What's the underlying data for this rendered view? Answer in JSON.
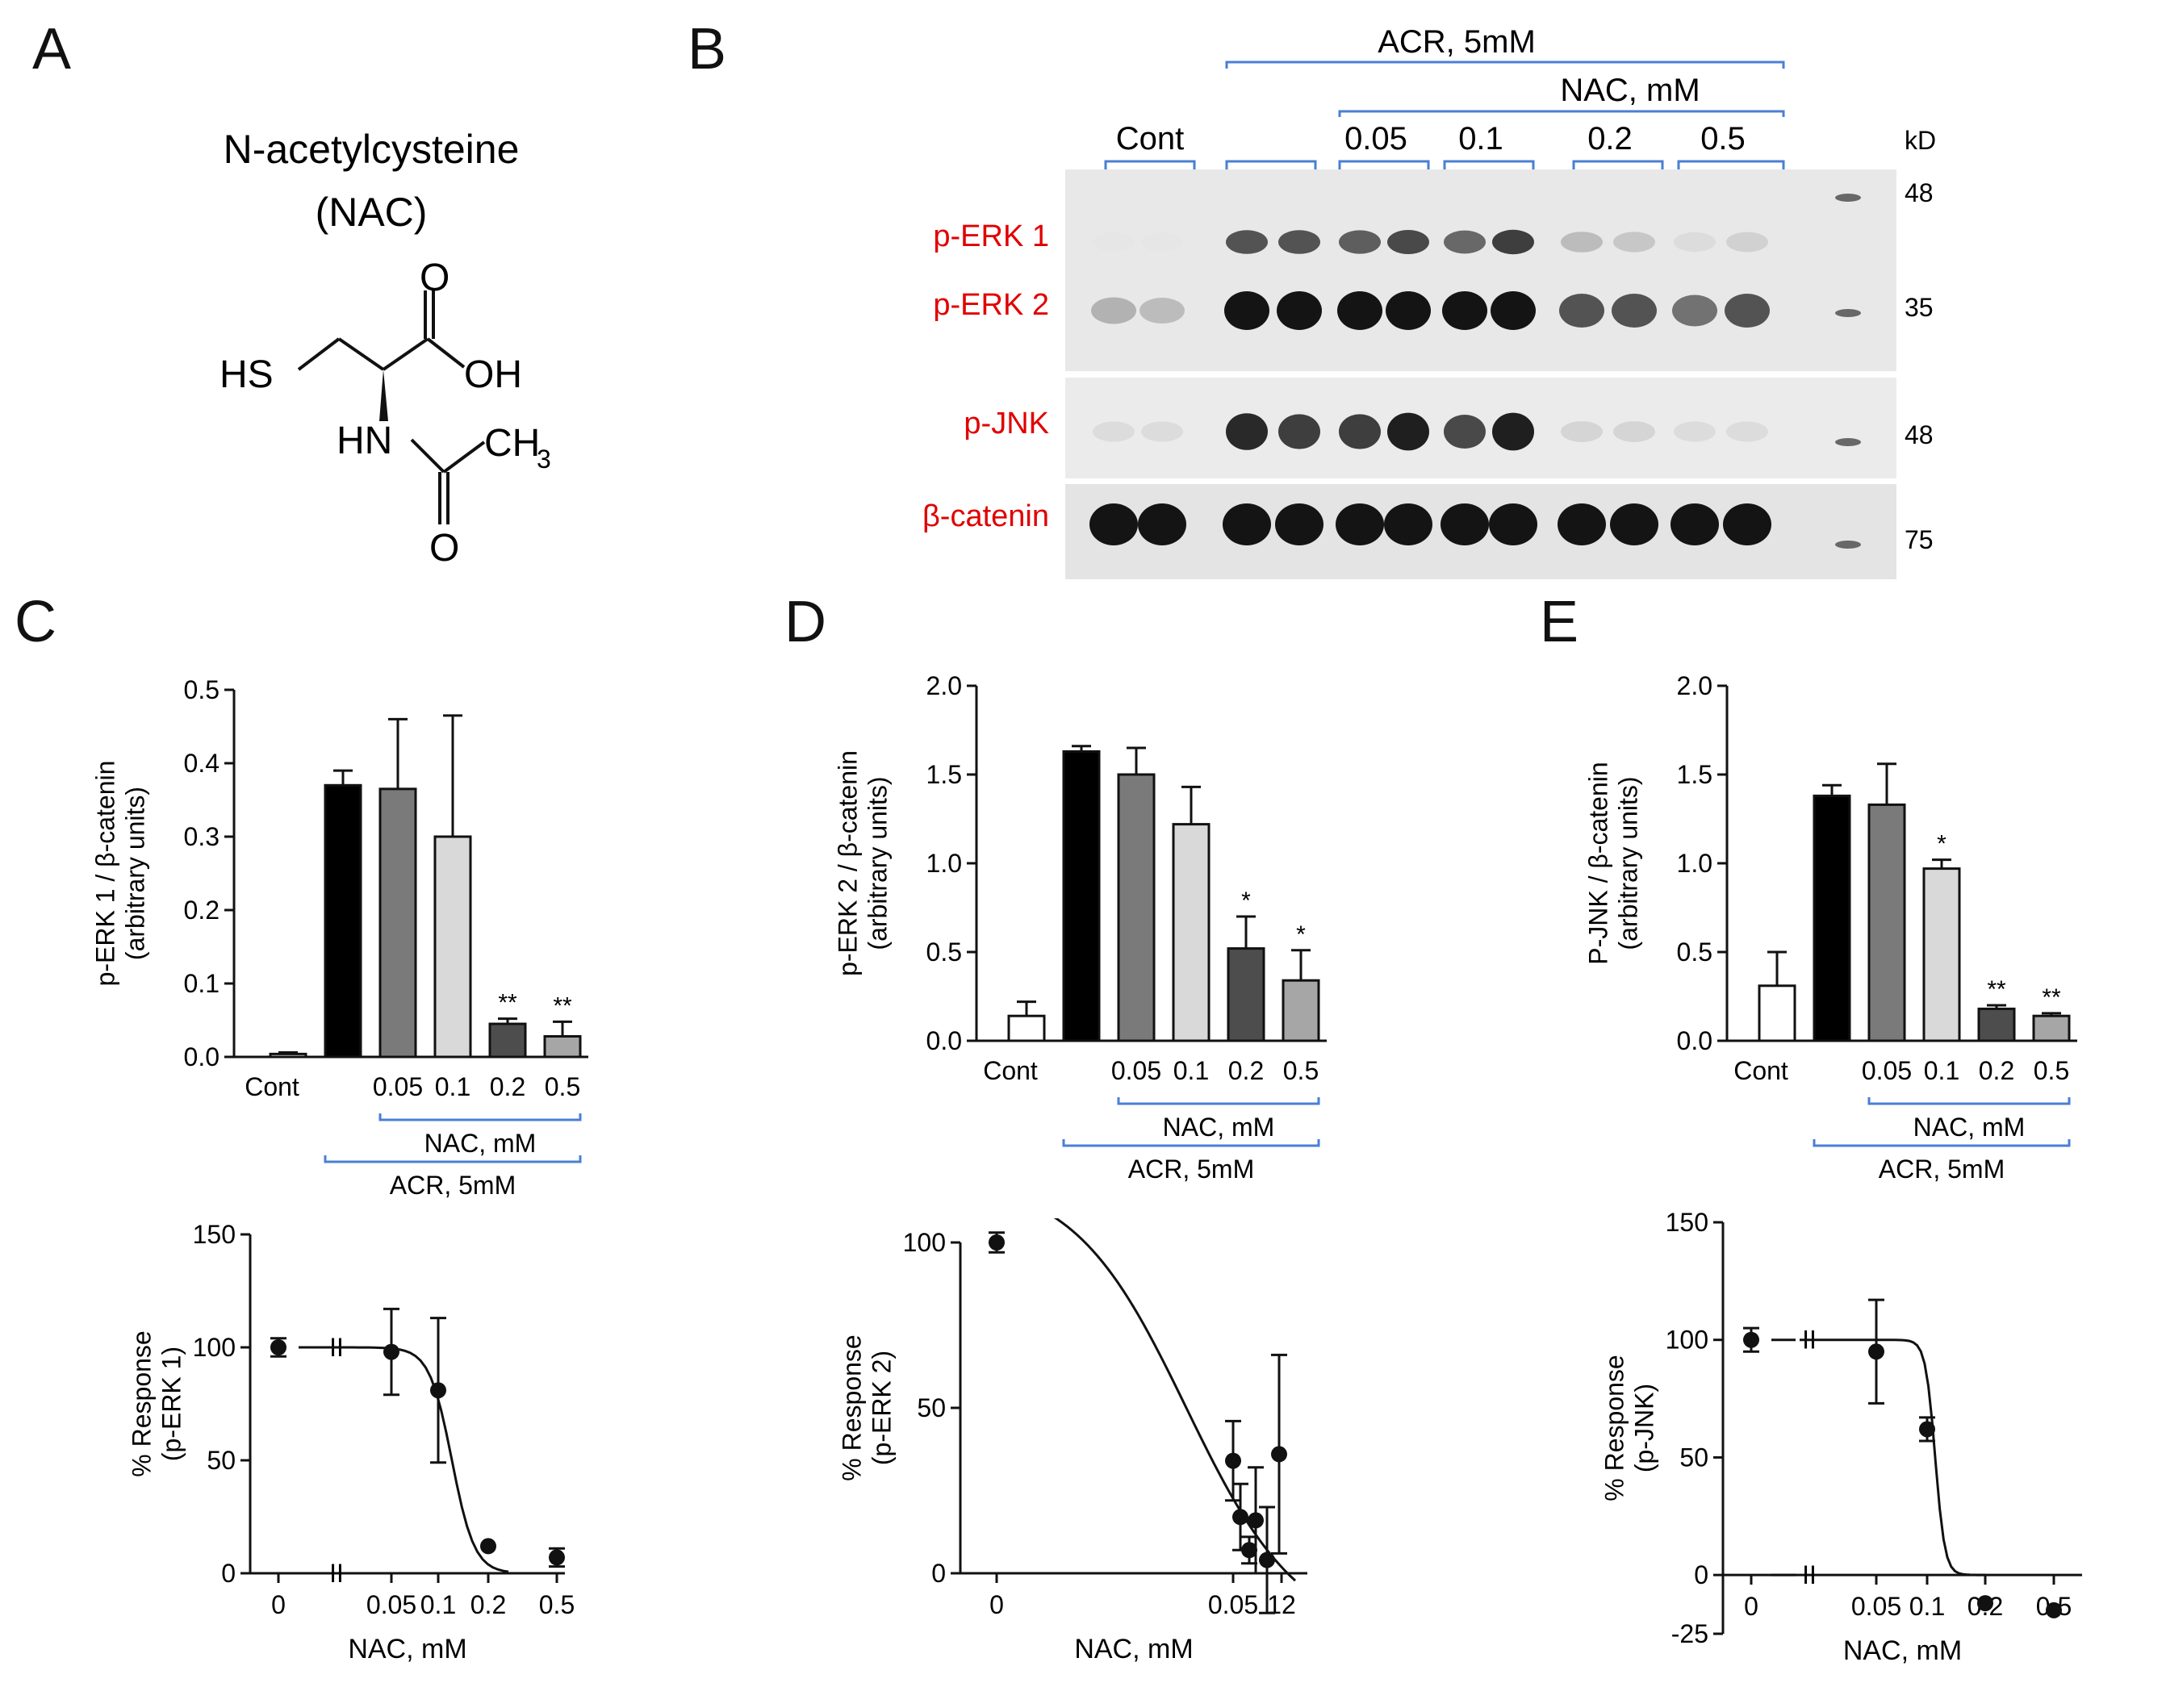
{
  "panels": {
    "A": {
      "letter": "A",
      "name_line1": "N-acetylcysteine",
      "name_line2": "(NAC)",
      "atoms": {
        "O_top": "O",
        "OH": "OH",
        "HS": "HS",
        "HN": "HN",
        "CH": "CH",
        "sub3": "3",
        "O_bottom": "O"
      }
    },
    "B": {
      "letter": "B",
      "treatment_label": "ACR, 5mM",
      "nac_label": "NAC, mM",
      "cont_label": "Cont",
      "concentrations": [
        "0.05",
        "0.1",
        "0.2",
        "0.5"
      ],
      "kd_label": "kD",
      "rows": [
        "p-ERK 1",
        "p-ERK 2",
        "p-JNK",
        "β-catenin"
      ],
      "markers": [
        "48",
        "35",
        "48",
        "75"
      ],
      "colors": {
        "row_label": "#e00000",
        "bracket": "#4a7fd4"
      }
    },
    "C": {
      "letter": "C"
    },
    "D": {
      "letter": "D"
    },
    "E": {
      "letter": "E"
    },
    "groups": {
      "nac": "NAC, mM",
      "acr": "ACR, 5mM"
    }
  },
  "chart_data": [
    {
      "panel": "C-top",
      "type": "bar",
      "categories": [
        "Cont",
        "",
        "0.05",
        "0.1",
        "0.2",
        "0.5"
      ],
      "values": [
        0.004,
        0.37,
        0.365,
        0.3,
        0.045,
        0.028
      ],
      "errors": [
        0.002,
        0.02,
        0.095,
        0.165,
        0.007,
        0.02
      ],
      "significance": [
        "",
        "",
        "",
        "",
        "**",
        "**"
      ],
      "fills": [
        "#ffffff",
        "#000000",
        "#7a7a7a",
        "#d9d9d9",
        "#4d4d4d",
        "#a6a6a6"
      ],
      "ylabel": "p-ERK 1 / β-catenin\n(arbitrary units)",
      "ylim": [
        0,
        0.5
      ],
      "yticks": [
        "0.0",
        "0.1",
        "0.2",
        "0.3",
        "0.4",
        "0.5"
      ]
    },
    {
      "panel": "D-top",
      "type": "bar",
      "categories": [
        "Cont",
        "",
        "0.05",
        "0.1",
        "0.2",
        "0.5"
      ],
      "values": [
        0.14,
        1.63,
        1.5,
        1.22,
        0.52,
        0.34
      ],
      "errors": [
        0.08,
        0.03,
        0.15,
        0.21,
        0.18,
        0.17
      ],
      "significance": [
        "",
        "",
        "",
        "",
        "*",
        "*"
      ],
      "fills": [
        "#ffffff",
        "#000000",
        "#7a7a7a",
        "#d9d9d9",
        "#4d4d4d",
        "#a6a6a6"
      ],
      "ylabel": "p-ERK 2 / β-catenin\n(arbitrary units)",
      "ylim": [
        0,
        2.0
      ],
      "yticks": [
        "0.0",
        "0.5",
        "1.0",
        "1.5",
        "2.0"
      ]
    },
    {
      "panel": "E-top",
      "type": "bar",
      "categories": [
        "Cont",
        "",
        "0.05",
        "0.1",
        "0.2",
        "0.5"
      ],
      "values": [
        0.31,
        1.38,
        1.33,
        0.97,
        0.18,
        0.14
      ],
      "errors": [
        0.19,
        0.06,
        0.23,
        0.05,
        0.02,
        0.015
      ],
      "significance": [
        "",
        "",
        "",
        "*",
        "**",
        "**"
      ],
      "fills": [
        "#ffffff",
        "#000000",
        "#7a7a7a",
        "#d9d9d9",
        "#4d4d4d",
        "#a6a6a6"
      ],
      "ylabel": "P-JNK / β-catenin\n(arbitrary units)",
      "ylim": [
        0,
        2.0
      ],
      "yticks": [
        "0.0",
        "0.5",
        "1.0",
        "1.5",
        "2.0"
      ]
    },
    {
      "panel": "C-bottom",
      "type": "scatter",
      "xlabel": "NAC, mM",
      "ylabel": "% Response\n(p-ERK 1)",
      "ylim": [
        0,
        150
      ],
      "yticks": [
        "0",
        "50",
        "100",
        "150"
      ],
      "xticks": [
        "0",
        "0.05",
        "0.1",
        "0.2",
        "0.5"
      ],
      "points": [
        {
          "x": "0",
          "y": 100,
          "err": 4
        },
        {
          "x": "0.05",
          "y": 98,
          "err": 19
        },
        {
          "x": "0.1",
          "y": 81,
          "err": 32
        },
        {
          "x": "0.2",
          "y": 12,
          "err": 0
        },
        {
          "x": "0.5",
          "y": 7,
          "err": 4
        }
      ],
      "axis_break": true
    },
    {
      "panel": "D-bottom",
      "type": "scatter",
      "xlabel": "NAC, mM",
      "ylabel": "% Response\n(p-ERK 2)",
      "ylim": [
        0,
        100
      ],
      "yticks": [
        "0",
        "50",
        "100"
      ],
      "xticks": [
        "0",
        "0.05",
        "12"
      ],
      "points": [
        {
          "x": "0",
          "y": 100,
          "err": 3
        },
        {
          "x": "0.05",
          "y": 34,
          "err": 12
        },
        {
          "x": "",
          "y": 17,
          "err": 10
        },
        {
          "x": "",
          "y": 7,
          "err": 4
        },
        {
          "x": "",
          "y": 16,
          "err": 16
        },
        {
          "x": "",
          "y": 4,
          "err": 16
        },
        {
          "x": "12",
          "y": 36,
          "err": 30
        }
      ]
    },
    {
      "panel": "E-bottom",
      "type": "scatter",
      "xlabel": "NAC, mM",
      "ylabel": "% Response\n(p-JNK)",
      "ylim": [
        -25,
        150
      ],
      "yticks": [
        "-25",
        "0",
        "50",
        "100",
        "150"
      ],
      "xticks": [
        "0",
        "0.05",
        "0.1",
        "0.2",
        "0.5"
      ],
      "points": [
        {
          "x": "0",
          "y": 100,
          "err": 5
        },
        {
          "x": "0.05",
          "y": 95,
          "err": 22
        },
        {
          "x": "0.1",
          "y": 62,
          "err": 5
        },
        {
          "x": "0.2",
          "y": -12,
          "err": 0
        },
        {
          "x": "0.5",
          "y": -15,
          "err": 0
        }
      ],
      "axis_break": true
    }
  ]
}
